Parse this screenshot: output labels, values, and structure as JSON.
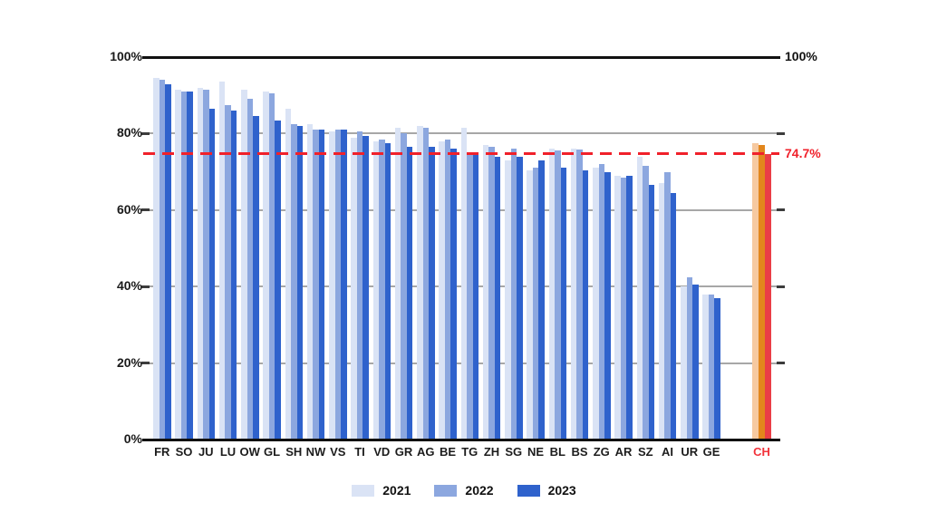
{
  "chart_data": {
    "type": "bar",
    "title": "",
    "categories": [
      "FR",
      "SO",
      "JU",
      "LU",
      "OW",
      "GL",
      "SH",
      "NW",
      "VS",
      "TI",
      "VD",
      "GR",
      "AG",
      "BE",
      "TG",
      "ZH",
      "SG",
      "NE",
      "BL",
      "BS",
      "ZG",
      "AR",
      "SZ",
      "AI",
      "UR",
      "GE"
    ],
    "series": [
      {
        "name": "2021",
        "color": "#DAE3F5",
        "values": [
          94.5,
          91.5,
          92,
          93.5,
          91.5,
          91,
          86.5,
          82.5,
          80.5,
          79,
          78,
          81.5,
          82,
          78,
          81.5,
          77,
          73,
          70.5,
          76,
          76,
          71,
          69,
          74,
          67,
          40,
          38
        ]
      },
      {
        "name": "2022",
        "color": "#8CA7DF",
        "values": [
          94,
          91,
          91.5,
          87.5,
          89,
          90.5,
          82.5,
          81,
          81,
          80.5,
          78.5,
          80,
          81.5,
          78.5,
          74.5,
          76.5,
          76,
          71,
          75.5,
          75.8,
          72,
          68.5,
          71.5,
          70,
          42.5,
          38
        ]
      },
      {
        "name": "2023",
        "color": "#2F62CC",
        "values": [
          93,
          91,
          86.5,
          86,
          84.5,
          83.5,
          82,
          81,
          81,
          79.5,
          77.5,
          76.5,
          76.5,
          76,
          75,
          74,
          74,
          73,
          71,
          70.5,
          70,
          69,
          66.5,
          64.5,
          40.5,
          37
        ]
      }
    ],
    "highlight_group": {
      "category": "CH",
      "label_color": "#F2333B",
      "bars": [
        {
          "name": "2021",
          "color": "#F6C9A0",
          "value": 77.5
        },
        {
          "name": "2022",
          "color": "#E2861C",
          "value": 77
        },
        {
          "name": "2023",
          "color": "#EA3D46",
          "value": 74.7
        }
      ]
    },
    "reference_line": {
      "value": 74.7,
      "label": "74.7%",
      "color": "#F0212B"
    },
    "y_axis": {
      "min": 0,
      "max": 100,
      "ticks": [
        {
          "value": 0,
          "label": "0%"
        },
        {
          "value": 20,
          "label": "20%"
        },
        {
          "value": 40,
          "label": "40%"
        },
        {
          "value": 60,
          "label": "60%"
        },
        {
          "value": 80,
          "label": "80%"
        },
        {
          "value": 100,
          "label": "100%"
        }
      ]
    },
    "right_axis_label": "100%",
    "legend": [
      "2021",
      "2022",
      "2023"
    ],
    "legend_position": "bottom",
    "grid": true,
    "grid_color": "#A7A7A7",
    "axis_color": "#111111",
    "tick_color": "#3c3c3c"
  }
}
